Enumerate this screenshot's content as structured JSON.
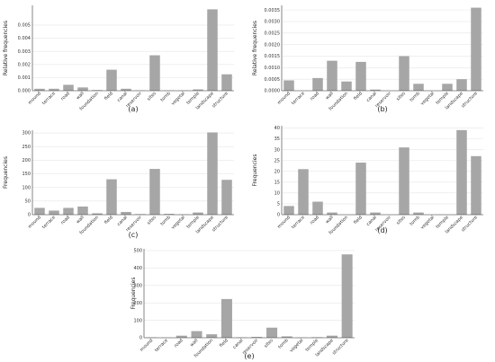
{
  "colors": {
    "bar": "#a6a6a6",
    "axis": "#333333",
    "grid": "#e6e6e6",
    "background": "#ffffff"
  },
  "chart_data": [
    {
      "type": "bar",
      "panel_label": "(a)",
      "ylabel": "Relative frequencies",
      "xlabel": "",
      "ylim": [
        0,
        0.0065
      ],
      "yticks": [
        0.0,
        0.001,
        0.002,
        0.003,
        0.004,
        0.005
      ],
      "ytick_labels": [
        "0.000",
        "0.001",
        "0.002",
        "0.003",
        "0.004",
        "0.005"
      ],
      "grid": true,
      "categories": [
        "mound",
        "terrace",
        "road",
        "wall",
        "foundation",
        "field",
        "canal",
        "reservoir",
        "sites",
        "tomb",
        "vegetal",
        "temple",
        "landscape",
        "structure"
      ],
      "values": [
        0.00015,
        0.00015,
        0.00045,
        0.00025,
        5e-05,
        0.0016,
        0.00015,
        2e-05,
        0.0027,
        2e-05,
        2e-05,
        0.0001,
        0.0062,
        0.00125
      ]
    },
    {
      "type": "bar",
      "panel_label": "(b)",
      "ylabel": "Relative frequencies",
      "xlabel": "",
      "ylim": [
        0,
        0.0037
      ],
      "yticks": [
        0.0,
        0.0005,
        0.001,
        0.0015,
        0.002,
        0.0025,
        0.003,
        0.0035
      ],
      "ytick_labels": [
        "0.0000",
        "0.0005",
        "0.0010",
        "0.0015",
        "0.0020",
        "0.0025",
        "0.0030",
        "0.0035"
      ],
      "grid": true,
      "categories": [
        "mound",
        "terrace",
        "road",
        "wall",
        "foundation",
        "field",
        "canal",
        "reservoir",
        "sites",
        "tomb",
        "vegetal",
        "temple",
        "landscape",
        "structure"
      ],
      "values": [
        0.00045,
        0.0,
        0.00055,
        0.0013,
        0.0004,
        0.00125,
        5e-05,
        0.0,
        0.0015,
        0.0003,
        0.0,
        0.0003,
        0.0005,
        0.0036
      ]
    },
    {
      "type": "bar",
      "panel_label": "(c)",
      "ylabel": "Frequencies",
      "xlabel": "",
      "ylim": [
        0,
        310
      ],
      "yticks": [
        0,
        50,
        100,
        150,
        200,
        250,
        300
      ],
      "ytick_labels": [
        "0",
        "50",
        "100",
        "150",
        "200",
        "250",
        "300"
      ],
      "grid": true,
      "categories": [
        "mound",
        "terrace",
        "road",
        "wall",
        "foundation",
        "field",
        "canal",
        "reservoir",
        "sites",
        "tomb",
        "vegetal",
        "temple",
        "landscape",
        "structure"
      ],
      "values": [
        25,
        15,
        25,
        30,
        5,
        130,
        10,
        2,
        168,
        3,
        1,
        8,
        302,
        128
      ]
    },
    {
      "type": "bar",
      "panel_label": "(d)",
      "ylabel": "Frequencies",
      "xlabel": "",
      "ylim": [
        0,
        41
      ],
      "yticks": [
        0,
        5,
        10,
        15,
        20,
        25,
        30,
        35,
        40
      ],
      "ytick_labels": [
        "0",
        "5",
        "10",
        "15",
        "20",
        "25",
        "30",
        "35",
        "40"
      ],
      "grid": true,
      "categories": [
        "mound",
        "terrace",
        "road",
        "wall",
        "foundation",
        "field",
        "canal",
        "reservoir",
        "sites",
        "tomb",
        "vegetal",
        "temple",
        "landscape",
        "structure"
      ],
      "values": [
        4,
        21,
        6,
        1,
        0,
        24,
        1,
        0,
        31,
        1,
        0,
        0,
        39,
        27
      ]
    },
    {
      "type": "bar",
      "panel_label": "(e)",
      "ylabel": "Frequencies",
      "xlabel": "",
      "ylim": [
        0,
        510
      ],
      "yticks": [
        0,
        100,
        200,
        300,
        400,
        500
      ],
      "ytick_labels": [
        "0",
        "100",
        "200",
        "300",
        "400",
        "500"
      ],
      "grid": true,
      "categories": [
        "mound",
        "terrace",
        "road",
        "wall",
        "foundation",
        "field",
        "canal",
        "reservoir",
        "sites",
        "tomb",
        "vegetal",
        "temple",
        "landscape",
        "structure"
      ],
      "values": [
        2,
        1,
        12,
        38,
        20,
        222,
        2,
        5,
        58,
        8,
        1,
        3,
        12,
        478
      ]
    }
  ]
}
